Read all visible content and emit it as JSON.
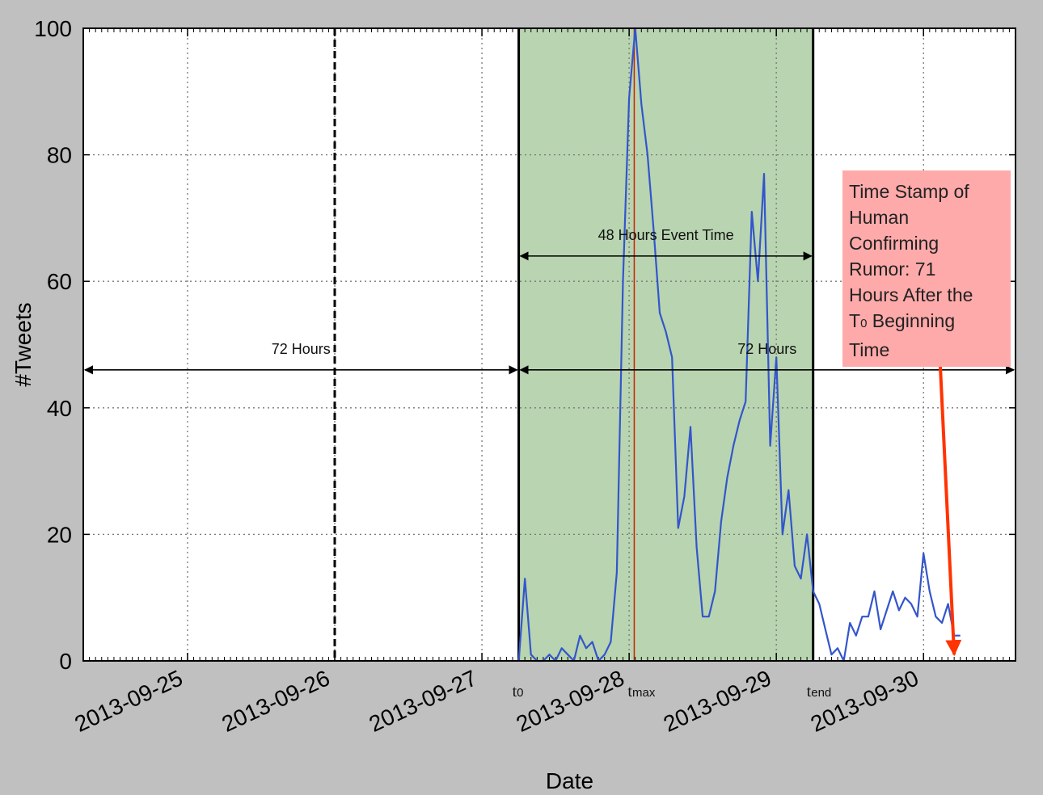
{
  "chart_data": {
    "type": "line",
    "title": "",
    "xlabel": "Date",
    "ylabel": "#Tweets",
    "ylim": [
      0,
      100
    ],
    "xlim": [
      "2013-09-24 07:00",
      "2013-09-30 15:00"
    ],
    "yticks": [
      "0",
      "20",
      "40",
      "60",
      "80",
      "100"
    ],
    "xticks": [
      {
        "date": "2013-09-25",
        "label": "2013-09-25"
      },
      {
        "date": "2013-09-26",
        "label": "2013-09-26"
      },
      {
        "date": "2013-09-27",
        "label": "2013-09-27"
      },
      {
        "date": "2013-09-28",
        "label": "2013-09-28"
      },
      {
        "date": "2013-09-29",
        "label": "2013-09-29"
      },
      {
        "date": "2013-09-30",
        "label": "2013-09-30"
      }
    ],
    "grid": true,
    "line_color": "#3355cc",
    "series": [
      {
        "x": [
          "2013-09-27 06:00",
          "2013-09-27 07:00",
          "2013-09-27 08:00",
          "2013-09-27 09:00",
          "2013-09-27 10:00",
          "2013-09-27 11:00",
          "2013-09-27 12:00",
          "2013-09-27 13:00",
          "2013-09-27 14:00",
          "2013-09-27 15:00",
          "2013-09-27 16:00",
          "2013-09-27 17:00",
          "2013-09-27 18:00",
          "2013-09-27 19:00",
          "2013-09-27 20:00",
          "2013-09-27 21:00",
          "2013-09-27 22:00",
          "2013-09-27 23:00",
          "2013-09-28 00:00",
          "2013-09-28 01:00",
          "2013-09-28 02:00",
          "2013-09-28 03:00",
          "2013-09-28 04:00",
          "2013-09-28 05:00",
          "2013-09-28 06:00",
          "2013-09-28 07:00",
          "2013-09-28 08:00",
          "2013-09-28 09:00",
          "2013-09-28 10:00",
          "2013-09-28 11:00",
          "2013-09-28 12:00",
          "2013-09-28 13:00",
          "2013-09-28 14:00",
          "2013-09-28 15:00",
          "2013-09-28 16:00",
          "2013-09-28 17:00",
          "2013-09-28 18:00",
          "2013-09-28 19:00",
          "2013-09-28 20:00",
          "2013-09-28 21:00",
          "2013-09-28 22:00",
          "2013-09-28 23:00",
          "2013-09-29 00:00",
          "2013-09-29 01:00",
          "2013-09-29 02:00",
          "2013-09-29 03:00",
          "2013-09-29 04:00",
          "2013-09-29 05:00",
          "2013-09-29 06:00",
          "2013-09-29 07:00",
          "2013-09-29 08:00",
          "2013-09-29 09:00",
          "2013-09-29 10:00",
          "2013-09-29 11:00",
          "2013-09-29 12:00",
          "2013-09-29 13:00",
          "2013-09-29 14:00",
          "2013-09-29 15:00",
          "2013-09-29 16:00",
          "2013-09-29 17:00",
          "2013-09-29 18:00",
          "2013-09-29 19:00",
          "2013-09-29 20:00",
          "2013-09-29 21:00",
          "2013-09-29 22:00",
          "2013-09-29 23:00",
          "2013-09-30 00:00",
          "2013-09-30 01:00",
          "2013-09-30 02:00",
          "2013-09-30 03:00",
          "2013-09-30 04:00",
          "2013-09-30 05:00",
          "2013-09-30 06:00"
        ],
        "values": [
          0,
          13,
          1,
          0,
          0,
          1,
          0,
          2,
          1,
          0,
          4,
          2,
          3,
          0,
          1,
          3,
          14,
          60,
          89,
          100,
          88,
          80,
          68,
          55,
          52,
          48,
          21,
          26,
          37,
          18,
          7,
          7,
          11,
          22,
          29,
          34,
          38,
          41,
          71,
          60,
          77,
          34,
          48,
          20,
          27,
          15,
          13,
          20,
          11,
          9,
          5,
          1,
          2,
          0,
          6,
          4,
          7,
          7,
          11,
          5,
          8,
          11,
          8,
          10,
          9,
          7,
          17,
          11,
          7,
          6,
          9,
          4,
          4
        ]
      }
    ],
    "regions": [
      {
        "type": "shaded",
        "from": "2013-09-27 06:00",
        "to": "2013-09-29 06:00",
        "color": "#b8d4b0",
        "border": "solid"
      }
    ],
    "vlines": [
      {
        "date": "2013-09-26 00:00",
        "style": "dashed"
      },
      {
        "date": "2013-09-28 00:50",
        "style": "solid-red"
      }
    ],
    "time_markers": [
      {
        "base": "t",
        "sub": "0",
        "date": "2013-09-27 06:00"
      },
      {
        "base": "t",
        "sub": "max",
        "date": "2013-09-28 00:50"
      },
      {
        "base": "t",
        "sub": "end",
        "date": "2013-09-29 06:00"
      }
    ],
    "spans": [
      {
        "label": "72 Hours",
        "from": "2013-09-24 07:00",
        "to": "2013-09-27 06:00",
        "y": 46
      },
      {
        "label": "72 Hours",
        "from": "2013-09-27 06:00",
        "to": "2013-09-30 15:00",
        "y": 46
      },
      {
        "label": "48 Hours Event Time",
        "from": "2013-09-27 06:00",
        "to": "2013-09-29 06:00",
        "y": 64
      }
    ],
    "annotation": {
      "lines": [
        "Time Stamp of",
        "Human",
        "Confirming",
        "Rumor: 71",
        "Hours After the"
      ],
      "t0_base": "T",
      "t0_sub": "0",
      "t0_suffix": " Beginning",
      "last_line": "Time",
      "box_color": "#ffaaaa",
      "arrow_color": "#ff3300",
      "arrow_target_date": "2013-09-30 05:00",
      "arrow_target_y": 1
    }
  }
}
